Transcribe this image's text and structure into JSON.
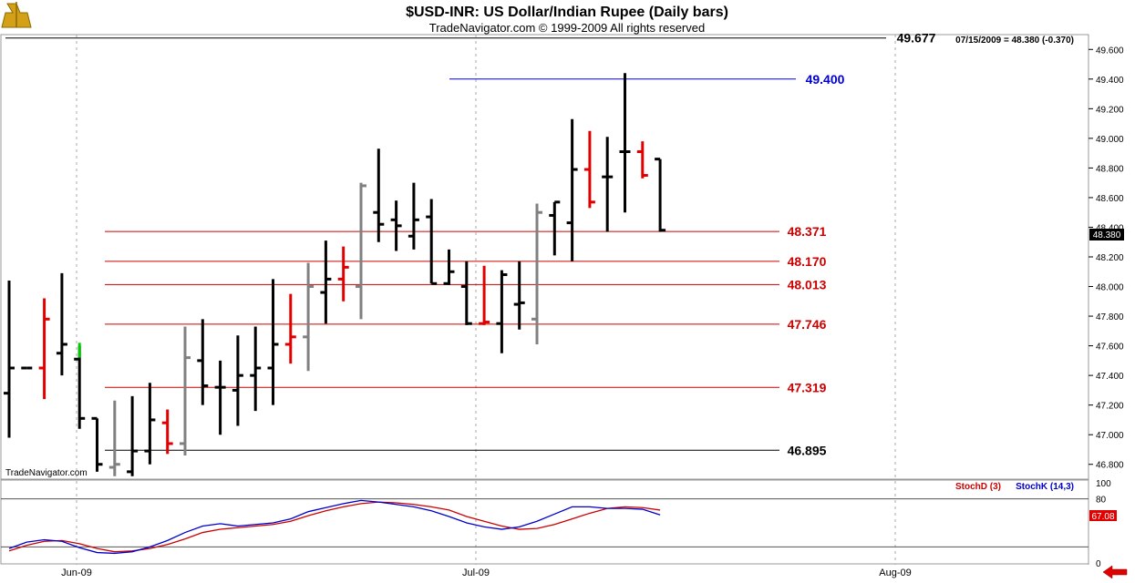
{
  "header": {
    "title": "$USD-INR:  US Dollar/Indian Rupee  (Daily bars)",
    "subtitle": "TradeNavigator.com © 1999-2009 All rights reserved",
    "watermark": "TradeNavigator.com",
    "quote": "07/15/2009 = 48.380 (-0.370)",
    "last_price": "48.380"
  },
  "colors": {
    "up": "#000000",
    "down": "#e00000",
    "neutral": "#808080",
    "green": "#00cc00",
    "blue_line": "#0000cc",
    "red_line": "#cc0000",
    "stoch_d": "#cc0000",
    "stoch_k": "#0000cc"
  },
  "chart_data": [
    {
      "type": "ohlc",
      "title": "$USD-INR:  US Dollar/Indian Rupee  (Daily bars)",
      "ylim": [
        46.7,
        49.7
      ],
      "y_ticks": [
        "49.600",
        "49.400",
        "49.200",
        "49.000",
        "48.800",
        "48.600",
        "48.400",
        "48.200",
        "48.000",
        "47.800",
        "47.600",
        "47.400",
        "47.200",
        "47.000",
        "46.800"
      ],
      "x_ticks": [
        "Jun-09",
        "Jul-09",
        "Aug-09"
      ],
      "levels": [
        {
          "label": "49.677",
          "value": 49.677,
          "color": "#000000"
        },
        {
          "label": "49.400",
          "value": 49.4,
          "color": "#0000cc"
        },
        {
          "label": "48.371",
          "value": 48.371,
          "color": "#cc0000"
        },
        {
          "label": "48.170",
          "value": 48.17,
          "color": "#cc0000"
        },
        {
          "label": "48.013",
          "value": 48.013,
          "color": "#cc0000"
        },
        {
          "label": "47.746",
          "value": 47.746,
          "color": "#cc0000"
        },
        {
          "label": "47.319",
          "value": 47.319,
          "color": "#cc0000"
        },
        {
          "label": "46.895",
          "value": 46.895,
          "color": "#000000"
        }
      ],
      "bars": [
        {
          "o": 47.28,
          "h": 48.04,
          "l": 46.98,
          "c": 47.45,
          "col": "up"
        },
        {
          "o": 47.45,
          "h": 47.45,
          "l": 47.45,
          "c": 47.45,
          "col": "up"
        },
        {
          "o": 47.45,
          "h": 47.92,
          "l": 47.24,
          "c": 47.78,
          "col": "down"
        },
        {
          "o": 47.55,
          "h": 48.09,
          "l": 47.4,
          "c": 47.61,
          "col": "up"
        },
        {
          "o": 47.51,
          "h": 47.6,
          "l": 47.04,
          "c": 47.11,
          "col": "up"
        },
        {
          "o": 47.11,
          "h": 47.11,
          "l": 46.75,
          "c": 46.8,
          "col": "up"
        },
        {
          "o": 46.78,
          "h": 47.23,
          "l": 46.72,
          "c": 46.8,
          "col": "neutral"
        },
        {
          "o": 46.75,
          "h": 47.26,
          "l": 46.72,
          "c": 46.89,
          "col": "up"
        },
        {
          "o": 46.89,
          "h": 47.35,
          "l": 46.8,
          "c": 47.1,
          "col": "up"
        },
        {
          "o": 47.08,
          "h": 47.17,
          "l": 46.87,
          "c": 46.94,
          "col": "down"
        },
        {
          "o": 46.94,
          "h": 47.73,
          "l": 46.86,
          "c": 47.52,
          "col": "neutral"
        },
        {
          "o": 47.5,
          "h": 47.78,
          "l": 47.2,
          "c": 47.33,
          "col": "up"
        },
        {
          "o": 47.32,
          "h": 47.5,
          "l": 47.0,
          "c": 47.32,
          "col": "up"
        },
        {
          "o": 47.3,
          "h": 47.67,
          "l": 47.06,
          "c": 47.4,
          "col": "up"
        },
        {
          "o": 47.4,
          "h": 47.73,
          "l": 47.16,
          "c": 47.45,
          "col": "up"
        },
        {
          "o": 47.45,
          "h": 48.05,
          "l": 47.2,
          "c": 47.61,
          "col": "up"
        },
        {
          "o": 47.61,
          "h": 47.95,
          "l": 47.48,
          "c": 47.66,
          "col": "down"
        },
        {
          "o": 47.66,
          "h": 48.16,
          "l": 47.43,
          "c": 48.0,
          "col": "neutral"
        },
        {
          "o": 47.96,
          "h": 48.31,
          "l": 47.75,
          "c": 48.05,
          "col": "up"
        },
        {
          "o": 48.05,
          "h": 48.27,
          "l": 47.9,
          "c": 48.13,
          "col": "down"
        },
        {
          "o": 48.0,
          "h": 48.7,
          "l": 47.78,
          "c": 48.68,
          "col": "neutral"
        },
        {
          "o": 48.5,
          "h": 48.93,
          "l": 48.3,
          "c": 48.42,
          "col": "up"
        },
        {
          "o": 48.45,
          "h": 48.58,
          "l": 48.24,
          "c": 48.41,
          "col": "up"
        },
        {
          "o": 48.34,
          "h": 48.7,
          "l": 48.25,
          "c": 48.45,
          "col": "up"
        },
        {
          "o": 48.47,
          "h": 48.59,
          "l": 48.02,
          "c": 48.02,
          "col": "up"
        },
        {
          "o": 48.02,
          "h": 48.25,
          "l": 48.01,
          "c": 48.1,
          "col": "up"
        },
        {
          "o": 48.0,
          "h": 48.17,
          "l": 47.74,
          "c": 47.75,
          "col": "up"
        },
        {
          "o": 47.75,
          "h": 48.14,
          "l": 47.74,
          "c": 47.76,
          "col": "down"
        },
        {
          "o": 47.75,
          "h": 48.11,
          "l": 47.55,
          "c": 48.08,
          "col": "up"
        },
        {
          "o": 47.88,
          "h": 48.17,
          "l": 47.71,
          "c": 47.89,
          "col": "up"
        },
        {
          "o": 47.78,
          "h": 48.56,
          "l": 47.61,
          "c": 48.5,
          "col": "neutral"
        },
        {
          "o": 48.48,
          "h": 48.57,
          "l": 48.21,
          "c": 48.57,
          "col": "up"
        },
        {
          "o": 48.43,
          "h": 49.13,
          "l": 48.17,
          "c": 48.79,
          "col": "up"
        },
        {
          "o": 48.79,
          "h": 49.05,
          "l": 48.53,
          "c": 48.57,
          "col": "down"
        },
        {
          "o": 48.74,
          "h": 49.01,
          "l": 48.37,
          "c": 48.74,
          "col": "up"
        },
        {
          "o": 48.91,
          "h": 49.44,
          "l": 48.5,
          "c": 48.91,
          "col": "up"
        },
        {
          "o": 48.91,
          "h": 48.98,
          "l": 48.73,
          "c": 48.75,
          "col": "down"
        },
        {
          "o": 48.86,
          "h": 48.86,
          "l": 48.37,
          "c": 48.38,
          "col": "up"
        }
      ]
    },
    {
      "type": "line",
      "title": "",
      "ylim": [
        0,
        100
      ],
      "y_ticks": [
        "100",
        "80",
        "0"
      ],
      "last_value": "67.08",
      "series": [
        {
          "name": "StochD (3)",
          "color": "#cc0000",
          "values": [
            15,
            22,
            27,
            28,
            24,
            18,
            14,
            15,
            18,
            23,
            30,
            38,
            42,
            44,
            46,
            48,
            52,
            59,
            65,
            70,
            74,
            76,
            75,
            73,
            70,
            66,
            58,
            52,
            46,
            42,
            43,
            48,
            55,
            62,
            68,
            70,
            69,
            66
          ]
        },
        {
          "name": "StochK (14,3)",
          "color": "#0000cc",
          "values": [
            18,
            26,
            29,
            27,
            19,
            13,
            12,
            14,
            20,
            28,
            38,
            46,
            49,
            46,
            48,
            50,
            55,
            64,
            69,
            74,
            78,
            76,
            73,
            70,
            65,
            58,
            50,
            45,
            42,
            45,
            52,
            61,
            70,
            70,
            68,
            68,
            67,
            60
          ]
        }
      ]
    }
  ]
}
